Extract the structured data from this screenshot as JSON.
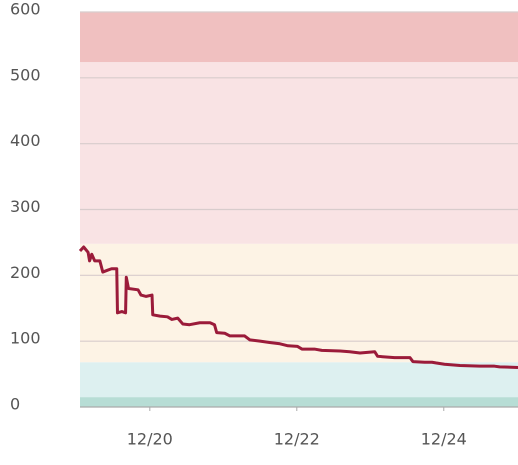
{
  "chart_data": {
    "type": "line",
    "x": [
      19.05,
      19.1,
      19.16,
      19.18,
      19.21,
      19.25,
      19.32,
      19.36,
      19.43,
      19.48,
      19.55,
      19.56,
      19.62,
      19.67,
      19.68,
      19.71,
      19.84,
      19.88,
      19.95,
      20.03,
      20.04,
      20.14,
      20.24,
      20.3,
      20.38,
      20.45,
      20.54,
      20.68,
      20.82,
      20.88,
      20.91,
      21.02,
      21.09,
      21.29,
      21.36,
      21.5,
      21.63,
      21.77,
      21.88,
      22.01,
      22.07,
      22.24,
      22.34,
      22.59,
      22.72,
      22.86,
      23.06,
      23.1,
      23.33,
      23.54,
      23.58,
      23.74,
      23.84,
      23.89,
      24.01,
      24.22,
      24.49,
      24.69,
      24.76,
      25.01
    ],
    "series": [
      {
        "color": "#9b1b3a",
        "values": [
          237,
          243,
          235,
          222,
          232,
          222,
          222,
          205,
          208,
          210,
          210,
          143,
          145,
          143,
          197,
          180,
          178,
          170,
          168,
          170,
          140,
          138,
          137,
          133,
          135,
          126,
          125,
          128,
          128,
          125,
          113,
          112,
          108,
          108,
          102,
          100,
          98,
          96,
          93,
          92,
          88,
          88,
          86,
          85,
          84,
          82,
          84,
          77,
          75,
          75,
          69,
          68,
          68,
          67,
          65,
          63,
          62,
          62,
          61,
          60
        ]
      }
    ],
    "bands": [
      {
        "from": 0,
        "to": 15,
        "color": "#b7ddd5"
      },
      {
        "from": 15,
        "to": 68,
        "color": "#ddf0f0"
      },
      {
        "from": 68,
        "to": 248,
        "color": "#fdf3e5"
      },
      {
        "from": 248,
        "to": 524,
        "color": "#f9e3e4"
      },
      {
        "from": 524,
        "to": 600,
        "color": "#f0c0c0"
      }
    ],
    "xlim": [
      19.05,
      25.01
    ],
    "xticks": [
      {
        "value": 20,
        "label": "12/20"
      },
      {
        "value": 22,
        "label": "12/22"
      },
      {
        "value": 24,
        "label": "12/24"
      }
    ],
    "ylim": [
      0,
      600
    ],
    "yticks": [
      0,
      100,
      200,
      300,
      400,
      500,
      600
    ],
    "grid": true
  }
}
